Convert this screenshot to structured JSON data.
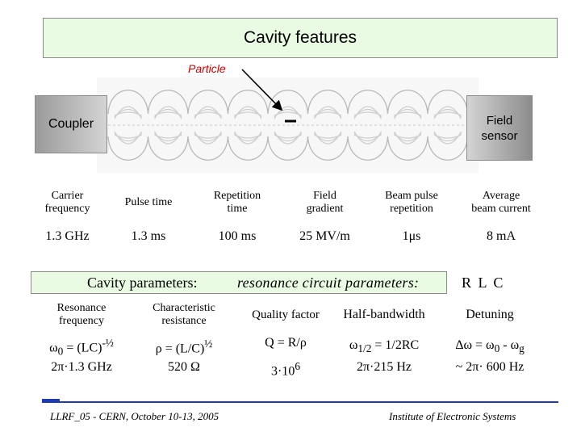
{
  "title": "Cavity features",
  "diagram": {
    "particle_label": "Particle",
    "coupler_label": "Coupler",
    "sensor_label": [
      "Field",
      "sensor"
    ]
  },
  "features_table": {
    "headers": [
      [
        "Carrier",
        "frequency"
      ],
      [
        "Pulse time"
      ],
      [
        "Repetition",
        "time"
      ],
      [
        "Field",
        "gradient"
      ],
      [
        "Beam pulse",
        "repetition"
      ],
      [
        "Average",
        "beam current"
      ]
    ],
    "values": [
      "1.3 GHz",
      "1.3 ms",
      "100 ms",
      "25 MV/m",
      "1μs",
      "8 mA"
    ]
  },
  "parameters": {
    "label": "Cavity parameters:",
    "resonance_label": "resonance circuit parameters:",
    "rlc_label": "R L C",
    "headers": [
      [
        "Resonance",
        "frequency"
      ],
      [
        "Characteristic",
        "resistance"
      ],
      [
        "Quality factor"
      ],
      [
        "Half-bandwidth"
      ],
      [
        "Detuning"
      ]
    ],
    "formulas": {
      "omega0_sym": "ω",
      "omega0_sub": "0",
      "omega0_rest": " = (LC)",
      "omega0_exp": "-½",
      "rho": "ρ = (L/C)",
      "rho_exp": "½",
      "q": "Q = R/ρ",
      "w12_sym": "ω",
      "w12_sub": "1/2",
      "w12_rest": " = 1/2RC",
      "dw_a": "Δω = ω",
      "dw_sub0": "0",
      "dw_b": " - ω",
      "dw_subg": "g"
    },
    "values": {
      "freq": "2π·1.3 GHz",
      "rho": "520 Ω",
      "q_base": "3·10",
      "q_exp": "6",
      "w12": "2π·215 Hz",
      "detuning": "~ 2π· 600 Hz"
    }
  },
  "footer": {
    "left": "LLRF_05 - CERN, October 10-13, 2005",
    "right": "Institute of Electronic Systems"
  },
  "colors": {
    "title_bg": "#e9fbe3",
    "particle": "#cc0000",
    "footer_rule": "#1f3bb0"
  }
}
